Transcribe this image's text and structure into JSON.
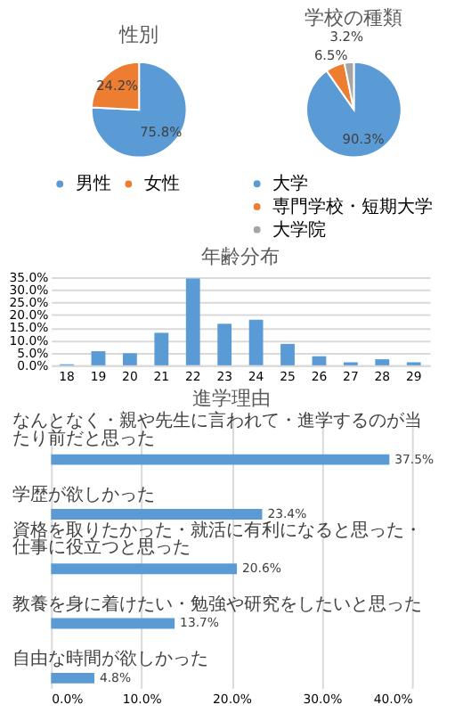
{
  "chart_data": [
    {
      "type": "pie",
      "title": "性別",
      "categories": [
        "男性",
        "女性"
      ],
      "values": [
        75.8,
        24.2
      ],
      "colors": [
        "#5b9bd5",
        "#ed7d31"
      ],
      "value_labels": [
        "75.8%",
        "24.2%"
      ],
      "legend": "bottom"
    },
    {
      "type": "pie",
      "title": "学校の種類",
      "categories": [
        "大学",
        "専門学校・短期大学",
        "大学院"
      ],
      "values": [
        90.3,
        6.5,
        3.2
      ],
      "colors": [
        "#5b9bd5",
        "#ed7d31",
        "#a5a5a5"
      ],
      "value_labels": [
        "90.3%",
        "6.5%",
        "3.2%"
      ],
      "legend": "bottom"
    },
    {
      "type": "bar",
      "title": "年齢分布",
      "categories": [
        "18",
        "19",
        "20",
        "21",
        "22",
        "23",
        "24",
        "25",
        "26",
        "27",
        "28",
        "29"
      ],
      "values": [
        0.4,
        5.6,
        4.8,
        12.9,
        34.5,
        16.5,
        18.1,
        8.5,
        3.6,
        1.2,
        2.4,
        1.2
      ],
      "color": "#5b9bd5",
      "ylim": [
        0,
        35
      ],
      "yticks": [
        {
          "value": 0,
          "label": "0.0%"
        },
        {
          "value": 5,
          "label": "5.0%"
        },
        {
          "value": 10,
          "label": "10.0%"
        },
        {
          "value": 15,
          "label": "15.0%"
        },
        {
          "value": 20,
          "label": "20.0%"
        },
        {
          "value": 25,
          "label": "25.0%"
        },
        {
          "value": 30,
          "label": "30.0%"
        },
        {
          "value": 35,
          "label": "35.0%"
        }
      ],
      "grid": "y"
    },
    {
      "type": "bar",
      "orientation": "horizontal",
      "title": "進学理由",
      "categories": [
        "なんとなく・親や先生に言われて・進学するのが当たり前だと思った",
        "学歴が欲しかった",
        "資格を取りたかった・就活に有利になると思った・仕事に役立つと思った",
        "教養を身に着けたい・勉強や研究をしたいと思った",
        "自由な時間が欲しかった"
      ],
      "values": [
        37.5,
        23.4,
        20.6,
        13.7,
        4.8
      ],
      "color": "#5b9bd5",
      "value_labels": [
        "37.5%",
        "23.4%",
        "20.6%",
        "13.7%",
        "4.8%"
      ],
      "xlim": [
        0,
        40
      ],
      "xticks": [
        {
          "value": 0,
          "label": "0.0%"
        },
        {
          "value": 10,
          "label": "10.0%"
        },
        {
          "value": 20,
          "label": "20.0%"
        },
        {
          "value": 30,
          "label": "30.0%"
        },
        {
          "value": 40,
          "label": "40.0%"
        }
      ],
      "grid": "x"
    }
  ]
}
